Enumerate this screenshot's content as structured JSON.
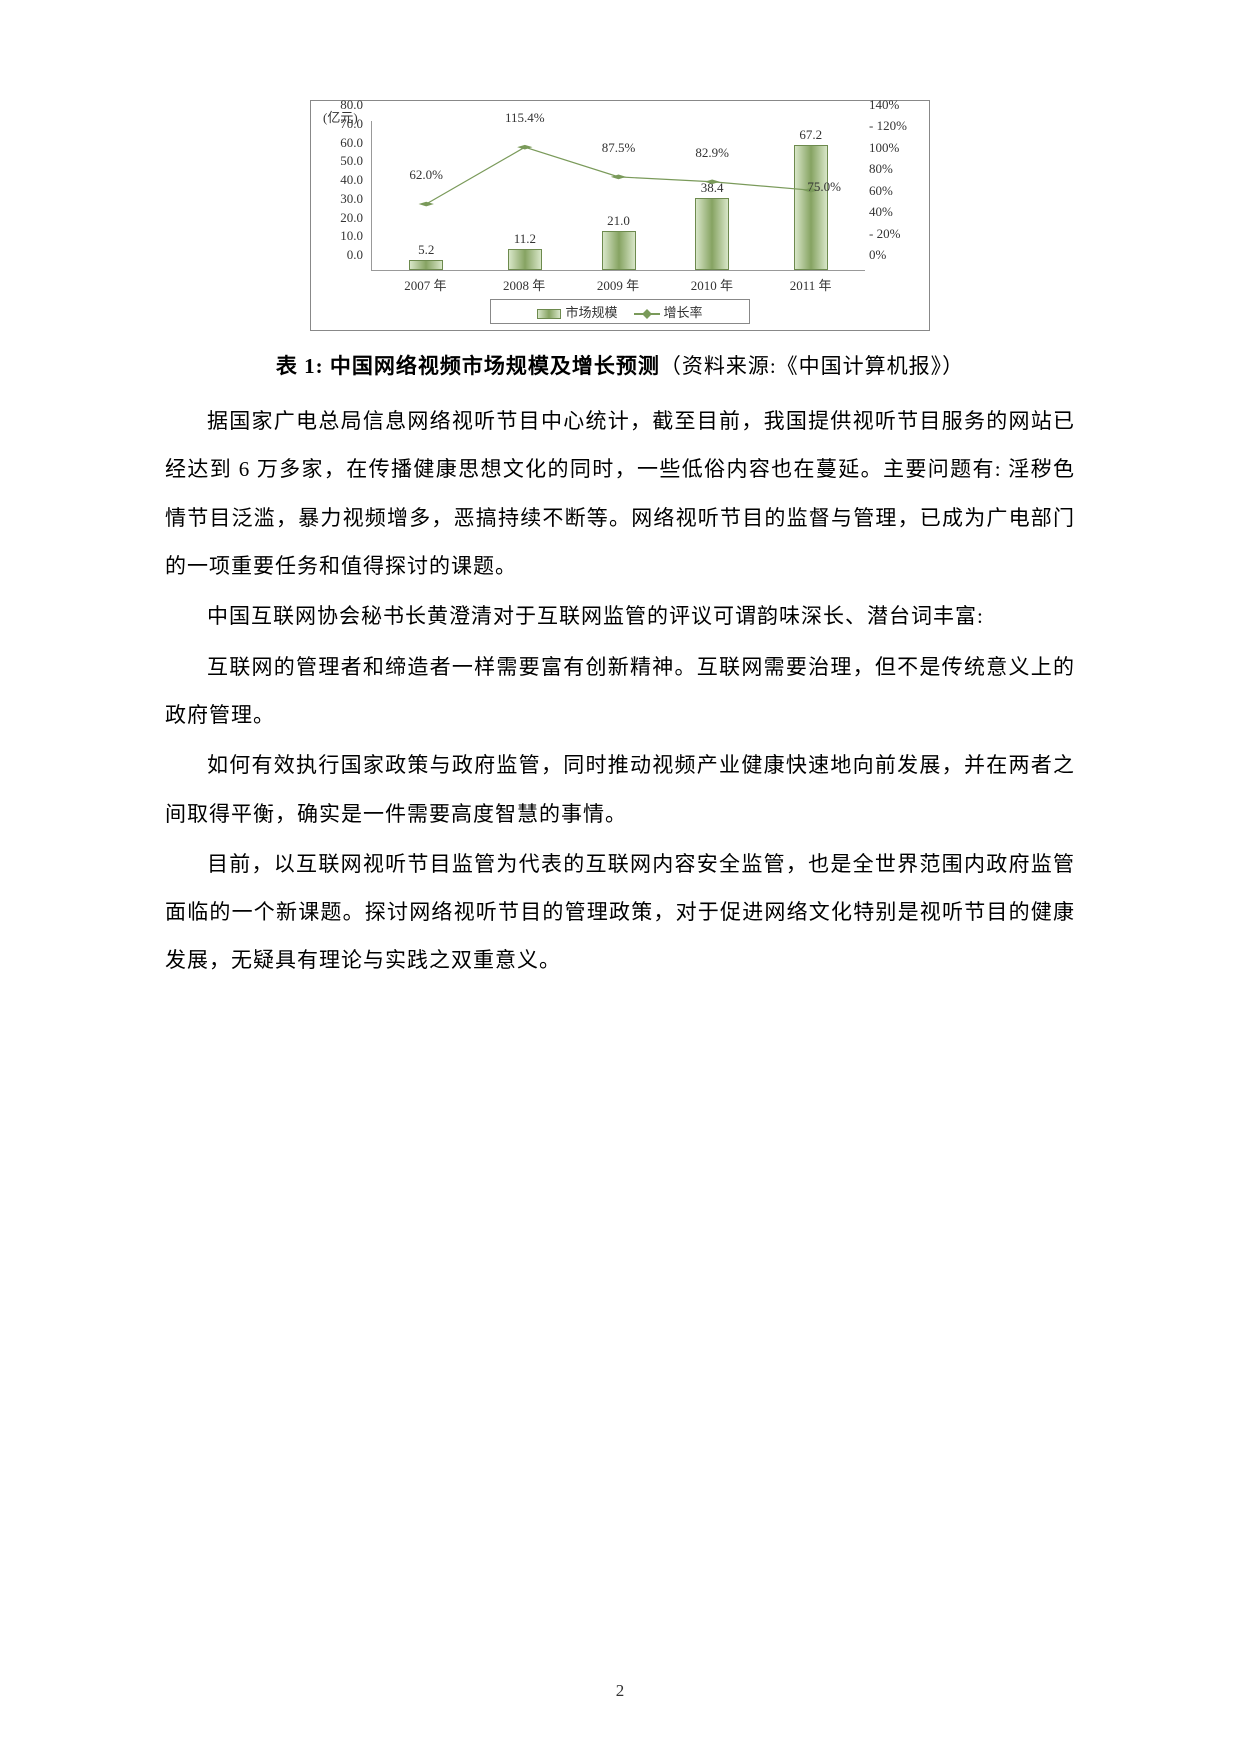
{
  "chart": {
    "type": "bar+line",
    "y_unit": "(亿元)",
    "y_left": {
      "min": 0,
      "max": 80,
      "step": 10,
      "ticks": [
        "0.0",
        "10.0",
        "20.0",
        "30.0",
        "40.0",
        "50.0",
        "60.0",
        "70.0",
        "80.0"
      ]
    },
    "y_right": {
      "min": 0,
      "max": 140,
      "step": 20,
      "ticks": [
        "0%",
        "20%",
        "40%",
        "60%",
        "80%",
        "100%",
        "120%",
        "140%"
      ],
      "dash_before": [
        "20%",
        "120%"
      ]
    },
    "categories": [
      "2007 年",
      "2008 年",
      "2009 年",
      "2010 年",
      "2011 年"
    ],
    "bars": {
      "values": [
        5.2,
        11.2,
        21.0,
        38.4,
        67.2
      ],
      "labels": [
        "5.2",
        "11.2",
        "21.0",
        "38.4",
        "67.2"
      ],
      "color_gradient": [
        "#d8e6c8",
        "#86a362",
        "#d8e6c8"
      ],
      "border_color": "#6d8a4e"
    },
    "line": {
      "values": [
        62.0,
        115.4,
        87.5,
        82.9,
        75.0
      ],
      "labels": [
        "62.0%",
        "115.4%",
        "87.5%",
        "82.9%",
        "75.0%"
      ],
      "color": "#7a9a5a",
      "marker": "diamond"
    },
    "legend": {
      "bar": "市场规模",
      "line": "增长率"
    },
    "x_positions_pct": [
      11,
      31,
      50,
      69,
      89
    ]
  },
  "caption": {
    "bold": "表 1: 中国网络视频市场规模及增长预测",
    "paren": "（资料来源:《中国计算机报》）"
  },
  "paragraphs": [
    "据国家广电总局信息网络视听节目中心统计，截至目前，我国提供视听节目服务的网站已经达到 6 万多家，在传播健康思想文化的同时，一些低俗内容也在蔓延。主要问题有: 淫秽色情节目泛滥，暴力视频增多，恶搞持续不断等。网络视听节目的监督与管理，已成为广电部门的一项重要任务和值得探讨的课题。",
    "中国互联网协会秘书长黄澄清对于互联网监管的评议可谓韵味深长、潜台词丰富:",
    "互联网的管理者和缔造者一样需要富有创新精神。互联网需要治理，但不是传统意义上的政府管理。",
    "如何有效执行国家政策与政府监管，同时推动视频产业健康快速地向前发展，并在两者之间取得平衡，确实是一件需要高度智慧的事情。",
    "目前，以互联网视听节目监管为代表的互联网内容安全监管，也是全世界范围内政府监管面临的一个新课题。探讨网络视听节目的管理政策，对于促进网络文化特别是视听节目的健康发展，无疑具有理论与实践之双重意义。"
  ],
  "page_number": "2"
}
